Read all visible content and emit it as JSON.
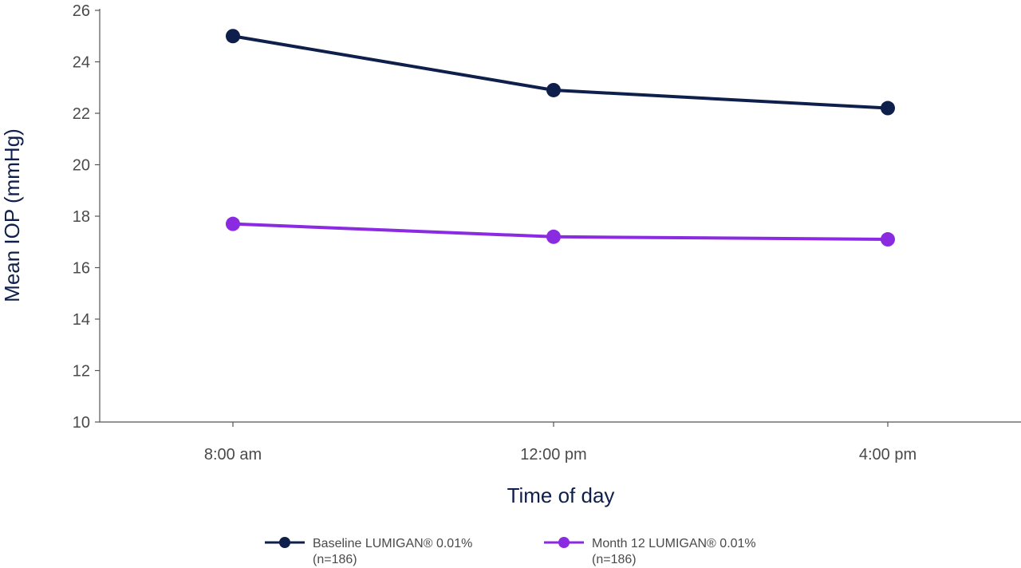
{
  "chart_data": {
    "type": "line",
    "title": "",
    "xlabel": "Time of day",
    "ylabel": "Mean IOP (mmHg)",
    "categories": [
      "8:00 am",
      "12:00 pm",
      "4:00 pm"
    ],
    "ylim": [
      10,
      26
    ],
    "yticks": [
      10,
      12,
      14,
      16,
      18,
      20,
      22,
      24,
      26
    ],
    "grid": false,
    "legend_position": "bottom",
    "series": [
      {
        "name": "Baseline LUMIGAN® 0.01%",
        "name_note": "(n=186)",
        "color": "#0f1f4b",
        "values": [
          25.0,
          22.9,
          22.2
        ]
      },
      {
        "name": "Month 12 LUMIGAN® 0.01%",
        "name_note": "(n=186)",
        "color": "#8a2be2",
        "values": [
          17.7,
          17.2,
          17.1
        ]
      }
    ]
  }
}
